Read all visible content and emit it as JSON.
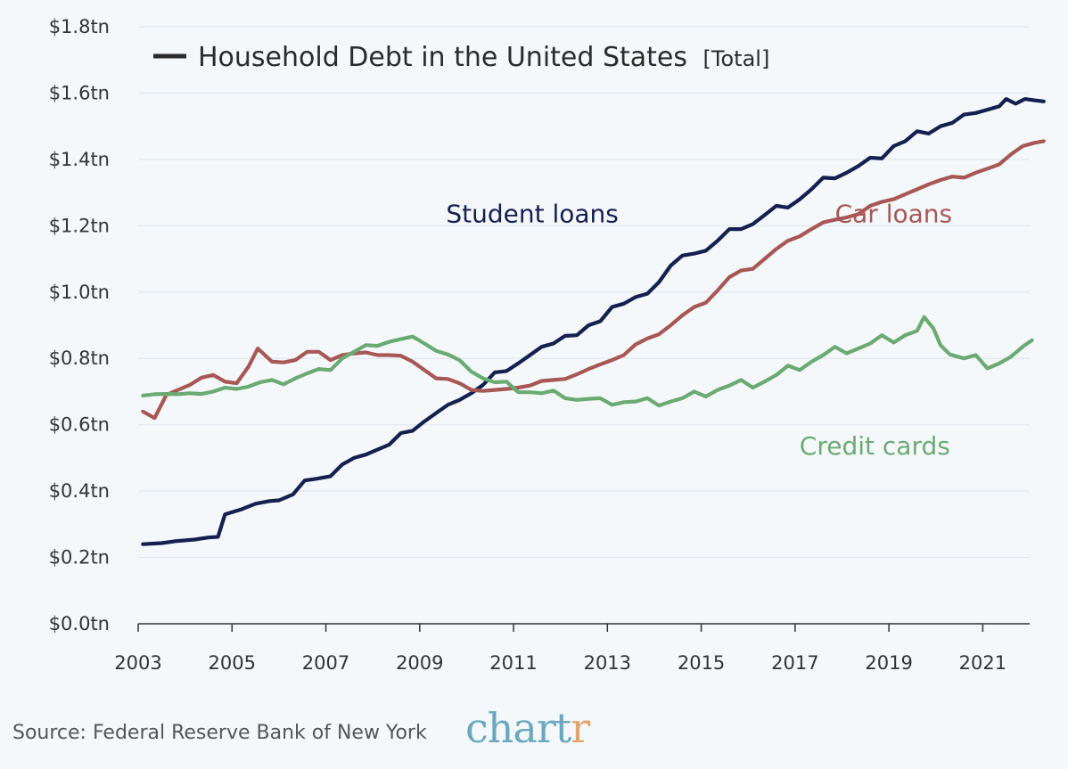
{
  "chart_data": {
    "type": "line",
    "legend": {
      "title": "Household Debt in the United States",
      "qualifier": "[Total]"
    },
    "y_ticks": [
      "$0.0tn",
      "$0.2tn",
      "$0.4tn",
      "$0.6tn",
      "$0.8tn",
      "$1.0tn",
      "$1.2tn",
      "$1.4tn",
      "$1.6tn",
      "$1.8tn"
    ],
    "y_tick_values": [
      0,
      0.2,
      0.4,
      0.6,
      0.8,
      1.0,
      1.2,
      1.4,
      1.6,
      1.8
    ],
    "x_ticks": [
      "2003",
      "2005",
      "2007",
      "2009",
      "2011",
      "2013",
      "2015",
      "2017",
      "2019",
      "2021"
    ],
    "x_tick_values": [
      2003,
      2005,
      2007,
      2009,
      2011,
      2013,
      2015,
      2017,
      2019,
      2021
    ],
    "xlim": [
      2003,
      2022
    ],
    "ylim": [
      0,
      1.8
    ],
    "grid": "horizontal",
    "series": [
      {
        "name": "Student loans",
        "color": "#14204f",
        "points": [
          [
            2003.1,
            0.24
          ],
          [
            2003.5,
            0.243
          ],
          [
            2003.8,
            0.249
          ],
          [
            2004.2,
            0.254
          ],
          [
            2004.5,
            0.26
          ],
          [
            2004.7,
            0.262
          ],
          [
            2004.85,
            0.33
          ],
          [
            2005.2,
            0.345
          ],
          [
            2005.5,
            0.362
          ],
          [
            2005.8,
            0.37
          ],
          [
            2006.0,
            0.372
          ],
          [
            2006.3,
            0.39
          ],
          [
            2006.55,
            0.432
          ],
          [
            2006.8,
            0.437
          ],
          [
            2007.1,
            0.445
          ],
          [
            2007.35,
            0.48
          ],
          [
            2007.6,
            0.5
          ],
          [
            2007.85,
            0.51
          ],
          [
            2008.1,
            0.525
          ],
          [
            2008.35,
            0.54
          ],
          [
            2008.6,
            0.575
          ],
          [
            2008.85,
            0.582
          ],
          [
            2009.1,
            0.61
          ],
          [
            2009.35,
            0.635
          ],
          [
            2009.6,
            0.66
          ],
          [
            2009.85,
            0.675
          ],
          [
            2010.1,
            0.695
          ],
          [
            2010.35,
            0.72
          ],
          [
            2010.6,
            0.758
          ],
          [
            2010.85,
            0.762
          ],
          [
            2011.1,
            0.785
          ],
          [
            2011.35,
            0.81
          ],
          [
            2011.6,
            0.835
          ],
          [
            2011.85,
            0.845
          ],
          [
            2012.1,
            0.868
          ],
          [
            2012.35,
            0.87
          ],
          [
            2012.6,
            0.9
          ],
          [
            2012.85,
            0.912
          ],
          [
            2013.1,
            0.955
          ],
          [
            2013.35,
            0.965
          ],
          [
            2013.6,
            0.985
          ],
          [
            2013.85,
            0.995
          ],
          [
            2014.1,
            1.03
          ],
          [
            2014.35,
            1.08
          ],
          [
            2014.6,
            1.11
          ],
          [
            2014.85,
            1.116
          ],
          [
            2015.1,
            1.125
          ],
          [
            2015.35,
            1.155
          ],
          [
            2015.6,
            1.19
          ],
          [
            2015.85,
            1.19
          ],
          [
            2016.1,
            1.205
          ],
          [
            2016.35,
            1.232
          ],
          [
            2016.6,
            1.26
          ],
          [
            2016.85,
            1.255
          ],
          [
            2017.1,
            1.28
          ],
          [
            2017.35,
            1.31
          ],
          [
            2017.6,
            1.345
          ],
          [
            2017.85,
            1.343
          ],
          [
            2018.1,
            1.36
          ],
          [
            2018.35,
            1.38
          ],
          [
            2018.6,
            1.405
          ],
          [
            2018.85,
            1.403
          ],
          [
            2019.1,
            1.44
          ],
          [
            2019.35,
            1.455
          ],
          [
            2019.6,
            1.485
          ],
          [
            2019.85,
            1.478
          ],
          [
            2020.1,
            1.5
          ],
          [
            2020.35,
            1.51
          ],
          [
            2020.6,
            1.535
          ],
          [
            2020.85,
            1.54
          ],
          [
            2021.1,
            1.55
          ],
          [
            2021.35,
            1.56
          ],
          [
            2021.5,
            1.582
          ],
          [
            2021.7,
            1.568
          ],
          [
            2021.9,
            1.582
          ],
          [
            2022.1,
            1.578
          ],
          [
            2022.3,
            1.575
          ]
        ]
      },
      {
        "name": "Car loans",
        "color": "#a85755",
        "points": [
          [
            2003.1,
            0.64
          ],
          [
            2003.35,
            0.62
          ],
          [
            2003.6,
            0.69
          ],
          [
            2003.85,
            0.705
          ],
          [
            2004.1,
            0.72
          ],
          [
            2004.35,
            0.742
          ],
          [
            2004.6,
            0.75
          ],
          [
            2004.85,
            0.73
          ],
          [
            2005.1,
            0.725
          ],
          [
            2005.35,
            0.775
          ],
          [
            2005.55,
            0.83
          ],
          [
            2005.85,
            0.79
          ],
          [
            2006.1,
            0.788
          ],
          [
            2006.35,
            0.795
          ],
          [
            2006.6,
            0.82
          ],
          [
            2006.85,
            0.82
          ],
          [
            2007.1,
            0.795
          ],
          [
            2007.35,
            0.81
          ],
          [
            2007.6,
            0.815
          ],
          [
            2007.85,
            0.818
          ],
          [
            2008.1,
            0.81
          ],
          [
            2008.35,
            0.81
          ],
          [
            2008.6,
            0.808
          ],
          [
            2008.85,
            0.79
          ],
          [
            2009.1,
            0.765
          ],
          [
            2009.35,
            0.74
          ],
          [
            2009.6,
            0.738
          ],
          [
            2009.85,
            0.725
          ],
          [
            2010.1,
            0.705
          ],
          [
            2010.35,
            0.702
          ],
          [
            2010.6,
            0.705
          ],
          [
            2010.85,
            0.708
          ],
          [
            2011.1,
            0.712
          ],
          [
            2011.35,
            0.718
          ],
          [
            2011.6,
            0.732
          ],
          [
            2011.85,
            0.735
          ],
          [
            2012.1,
            0.738
          ],
          [
            2012.35,
            0.752
          ],
          [
            2012.6,
            0.768
          ],
          [
            2012.85,
            0.782
          ],
          [
            2013.1,
            0.795
          ],
          [
            2013.35,
            0.81
          ],
          [
            2013.6,
            0.842
          ],
          [
            2013.85,
            0.86
          ],
          [
            2014.1,
            0.873
          ],
          [
            2014.35,
            0.9
          ],
          [
            2014.6,
            0.93
          ],
          [
            2014.85,
            0.955
          ],
          [
            2015.1,
            0.968
          ],
          [
            2015.35,
            1.005
          ],
          [
            2015.6,
            1.045
          ],
          [
            2015.85,
            1.065
          ],
          [
            2016.1,
            1.07
          ],
          [
            2016.35,
            1.1
          ],
          [
            2016.6,
            1.13
          ],
          [
            2016.85,
            1.155
          ],
          [
            2017.1,
            1.168
          ],
          [
            2017.35,
            1.19
          ],
          [
            2017.6,
            1.21
          ],
          [
            2017.85,
            1.218
          ],
          [
            2018.1,
            1.225
          ],
          [
            2018.35,
            1.235
          ],
          [
            2018.6,
            1.26
          ],
          [
            2018.85,
            1.272
          ],
          [
            2019.1,
            1.28
          ],
          [
            2019.35,
            1.295
          ],
          [
            2019.6,
            1.31
          ],
          [
            2019.85,
            1.325
          ],
          [
            2020.1,
            1.338
          ],
          [
            2020.35,
            1.348
          ],
          [
            2020.6,
            1.345
          ],
          [
            2020.85,
            1.36
          ],
          [
            2021.1,
            1.372
          ],
          [
            2021.35,
            1.385
          ],
          [
            2021.6,
            1.415
          ],
          [
            2021.85,
            1.44
          ],
          [
            2022.1,
            1.45
          ],
          [
            2022.3,
            1.455
          ]
        ]
      },
      {
        "name": "Credit cards",
        "color": "#6bab73",
        "points": [
          [
            2003.1,
            0.688
          ],
          [
            2003.35,
            0.692
          ],
          [
            2003.6,
            0.693
          ],
          [
            2003.85,
            0.692
          ],
          [
            2004.1,
            0.695
          ],
          [
            2004.35,
            0.693
          ],
          [
            2004.6,
            0.7
          ],
          [
            2004.85,
            0.712
          ],
          [
            2005.1,
            0.708
          ],
          [
            2005.35,
            0.715
          ],
          [
            2005.6,
            0.728
          ],
          [
            2005.85,
            0.735
          ],
          [
            2006.1,
            0.722
          ],
          [
            2006.35,
            0.74
          ],
          [
            2006.6,
            0.755
          ],
          [
            2006.85,
            0.768
          ],
          [
            2007.1,
            0.765
          ],
          [
            2007.35,
            0.8
          ],
          [
            2007.6,
            0.82
          ],
          [
            2007.85,
            0.84
          ],
          [
            2008.1,
            0.838
          ],
          [
            2008.35,
            0.85
          ],
          [
            2008.6,
            0.858
          ],
          [
            2008.85,
            0.866
          ],
          [
            2009.1,
            0.845
          ],
          [
            2009.35,
            0.823
          ],
          [
            2009.6,
            0.812
          ],
          [
            2009.85,
            0.795
          ],
          [
            2010.1,
            0.76
          ],
          [
            2010.35,
            0.74
          ],
          [
            2010.6,
            0.728
          ],
          [
            2010.85,
            0.73
          ],
          [
            2011.1,
            0.698
          ],
          [
            2011.35,
            0.698
          ],
          [
            2011.6,
            0.695
          ],
          [
            2011.85,
            0.703
          ],
          [
            2012.1,
            0.68
          ],
          [
            2012.35,
            0.675
          ],
          [
            2012.6,
            0.678
          ],
          [
            2012.85,
            0.68
          ],
          [
            2013.1,
            0.66
          ],
          [
            2013.35,
            0.668
          ],
          [
            2013.6,
            0.67
          ],
          [
            2013.85,
            0.68
          ],
          [
            2014.1,
            0.658
          ],
          [
            2014.35,
            0.67
          ],
          [
            2014.6,
            0.68
          ],
          [
            2014.85,
            0.7
          ],
          [
            2015.1,
            0.685
          ],
          [
            2015.35,
            0.705
          ],
          [
            2015.6,
            0.718
          ],
          [
            2015.85,
            0.735
          ],
          [
            2016.1,
            0.712
          ],
          [
            2016.35,
            0.73
          ],
          [
            2016.6,
            0.75
          ],
          [
            2016.85,
            0.778
          ],
          [
            2017.1,
            0.765
          ],
          [
            2017.35,
            0.79
          ],
          [
            2017.6,
            0.81
          ],
          [
            2017.85,
            0.835
          ],
          [
            2018.1,
            0.815
          ],
          [
            2018.35,
            0.83
          ],
          [
            2018.6,
            0.845
          ],
          [
            2018.85,
            0.87
          ],
          [
            2019.1,
            0.848
          ],
          [
            2019.35,
            0.87
          ],
          [
            2019.6,
            0.883
          ],
          [
            2019.75,
            0.925
          ],
          [
            2019.95,
            0.89
          ],
          [
            2020.1,
            0.84
          ],
          [
            2020.3,
            0.812
          ],
          [
            2020.6,
            0.8
          ],
          [
            2020.85,
            0.81
          ],
          [
            2021.1,
            0.77
          ],
          [
            2021.35,
            0.785
          ],
          [
            2021.6,
            0.805
          ],
          [
            2021.85,
            0.835
          ],
          [
            2022.05,
            0.855
          ]
        ]
      }
    ],
    "series_labels": [
      {
        "text": "Student loans",
        "series": 0,
        "at": [
          2011.4,
          1.21
        ]
      },
      {
        "text": "Car loans",
        "series": 1,
        "at": [
          2019.1,
          1.21
        ]
      },
      {
        "text": "Credit cards",
        "series": 2,
        "at": [
          2018.7,
          0.51
        ]
      }
    ]
  },
  "footer": {
    "source": "Source: Federal Reserve Bank of New York",
    "brand_main": "chart",
    "brand_tail": "r"
  }
}
